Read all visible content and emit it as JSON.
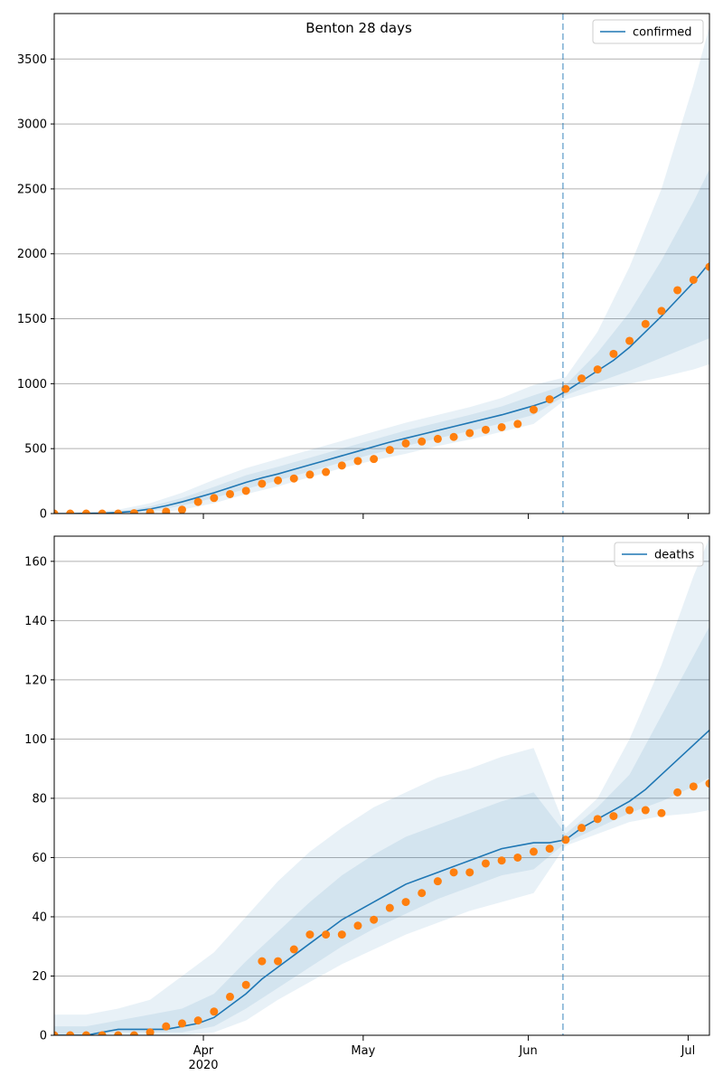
{
  "chart_data": [
    {
      "type": "line",
      "title": "Benton 28 days",
      "x": [
        64,
        67,
        70,
        73,
        76,
        79,
        82,
        85,
        88,
        91,
        94,
        97,
        100,
        103,
        106,
        109,
        112,
        115,
        118,
        121,
        124,
        127,
        130,
        133,
        136,
        139,
        142,
        145,
        148,
        151,
        154,
        157,
        160,
        163,
        166,
        169,
        172,
        175,
        178,
        181,
        184,
        187
      ],
      "xlim": [
        64,
        187
      ],
      "xticks": [
        92,
        122,
        153,
        183
      ],
      "show_xtick_labels": false,
      "ylim": [
        0,
        3850
      ],
      "yticks": [
        0,
        500,
        1000,
        1500,
        2000,
        2500,
        3000,
        3500
      ],
      "grid": true,
      "legend": "upper right",
      "vline": 159.5,
      "band_x": [
        64,
        70,
        76,
        82,
        88,
        94,
        100,
        106,
        112,
        118,
        124,
        130,
        136,
        142,
        148,
        154,
        160,
        166,
        172,
        178,
        184,
        187
      ],
      "bands": [
        {
          "lower": [
            0,
            0,
            0,
            5,
            30,
            80,
            150,
            210,
            280,
            350,
            410,
            460,
            520,
            570,
            630,
            690,
            880,
            950,
            1000,
            1050,
            1110,
            1150
          ],
          "upper": [
            5,
            10,
            30,
            80,
            160,
            260,
            350,
            420,
            490,
            560,
            630,
            700,
            760,
            820,
            890,
            990,
            1050,
            1400,
            1900,
            2500,
            3300,
            3750
          ]
        },
        {
          "lower": [
            0,
            0,
            3,
            20,
            60,
            120,
            190,
            255,
            325,
            395,
            460,
            520,
            580,
            635,
            695,
            760,
            910,
            1010,
            1100,
            1200,
            1300,
            1350
          ],
          "upper": [
            2,
            5,
            15,
            55,
            120,
            205,
            295,
            360,
            430,
            500,
            570,
            640,
            700,
            760,
            825,
            910,
            990,
            1240,
            1550,
            1950,
            2400,
            2650
          ]
        }
      ],
      "series": [
        {
          "name": "confirmed",
          "color": "#1f77b4",
          "style": "line",
          "values": [
            0,
            0,
            1,
            3,
            8,
            18,
            35,
            60,
            90,
            125,
            160,
            200,
            240,
            275,
            305,
            340,
            375,
            410,
            445,
            480,
            515,
            550,
            580,
            610,
            640,
            670,
            700,
            730,
            760,
            795,
            830,
            870,
            940,
            1020,
            1100,
            1180,
            1280,
            1400,
            1520,
            1650,
            1780,
            1930
          ]
        },
        {
          "color": "#ff7f0e",
          "style": "scatter",
          "values": [
            0,
            0,
            0,
            0,
            0,
            3,
            8,
            15,
            30,
            90,
            120,
            150,
            175,
            230,
            255,
            270,
            300,
            320,
            370,
            405,
            420,
            490,
            540,
            555,
            575,
            590,
            620,
            645,
            665,
            690,
            800,
            880,
            960,
            1040,
            1110,
            1230,
            1330,
            1460,
            1560,
            1720,
            1800,
            1900
          ]
        }
      ]
    },
    {
      "type": "line",
      "x": [
        64,
        67,
        70,
        73,
        76,
        79,
        82,
        85,
        88,
        91,
        94,
        97,
        100,
        103,
        106,
        109,
        112,
        115,
        118,
        121,
        124,
        127,
        130,
        133,
        136,
        139,
        142,
        145,
        148,
        151,
        154,
        157,
        160,
        163,
        166,
        169,
        172,
        175,
        178,
        181,
        184,
        187
      ],
      "xlim": [
        64,
        187
      ],
      "xticks": [
        {
          "value": 92,
          "label": "Apr\n2020"
        },
        {
          "value": 122,
          "label": "May"
        },
        {
          "value": 153,
          "label": "Jun"
        },
        {
          "value": 183,
          "label": "Jul"
        }
      ],
      "show_xtick_labels": true,
      "ylim": [
        0,
        168.5
      ],
      "yticks": [
        0,
        20,
        40,
        60,
        80,
        100,
        120,
        140,
        160
      ],
      "grid": true,
      "legend": "upper right",
      "vline": 159.5,
      "band_x": [
        64,
        70,
        76,
        82,
        88,
        94,
        100,
        106,
        112,
        118,
        124,
        130,
        136,
        142,
        148,
        154,
        160,
        166,
        172,
        178,
        184,
        187
      ],
      "bands": [
        {
          "lower": [
            0,
            0,
            0,
            0,
            0,
            1,
            5,
            12,
            18,
            24,
            29,
            34,
            38,
            42,
            45,
            48,
            64,
            68,
            72,
            74,
            75,
            76
          ],
          "upper": [
            7,
            7,
            9,
            12,
            20,
            28,
            40,
            52,
            62,
            70,
            77,
            82,
            87,
            90,
            94,
            97,
            70,
            80,
            100,
            125,
            155,
            168
          ]
        },
        {
          "lower": [
            0,
            0,
            1,
            1,
            1,
            3,
            9,
            16,
            23,
            30,
            36,
            41,
            46,
            50,
            54,
            56,
            65,
            70,
            75,
            79,
            84,
            87
          ],
          "upper": [
            3,
            3,
            5,
            7,
            9,
            14,
            25,
            35,
            45,
            54,
            61,
            67,
            71,
            75,
            79,
            82,
            68,
            77,
            88,
            108,
            128,
            138
          ]
        }
      ],
      "series": [
        {
          "name": "deaths",
          "color": "#1f77b4",
          "style": "line",
          "values": [
            0,
            0,
            0,
            1,
            2,
            2,
            2,
            2,
            3,
            4,
            6,
            10,
            14,
            19,
            23,
            27,
            31,
            35,
            39,
            42,
            45,
            48,
            51,
            53,
            55,
            57,
            59,
            61,
            63,
            64,
            65,
            65,
            66,
            70,
            73,
            76,
            79,
            83,
            88,
            93,
            98,
            103
          ]
        },
        {
          "color": "#ff7f0e",
          "style": "scatter",
          "values": [
            0,
            0,
            0,
            0,
            0,
            0,
            1,
            3,
            4,
            5,
            8,
            13,
            17,
            25,
            25,
            29,
            34,
            34,
            34,
            37,
            39,
            43,
            45,
            48,
            52,
            55,
            55,
            58,
            59,
            60,
            62,
            63,
            66,
            70,
            73,
            74,
            76,
            76,
            75,
            82,
            84,
            85
          ]
        }
      ]
    }
  ]
}
